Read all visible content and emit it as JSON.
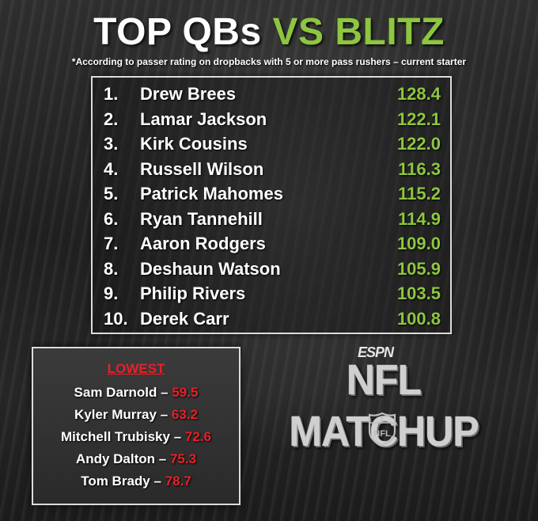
{
  "header": {
    "title_white": "TOP QBs",
    "title_green": "VS BLITZ",
    "footnote": "*According to passer rating on dropbacks with 5 or more pass rushers – current starter"
  },
  "top_list": [
    {
      "rank": "1.",
      "name": "Drew Brees",
      "rating": "128.4"
    },
    {
      "rank": "2.",
      "name": "Lamar Jackson",
      "rating": "122.1"
    },
    {
      "rank": "3.",
      "name": "Kirk Cousins",
      "rating": "122.0"
    },
    {
      "rank": "4.",
      "name": "Russell Wilson",
      "rating": "116.3"
    },
    {
      "rank": "5.",
      "name": "Patrick Mahomes",
      "rating": "115.2"
    },
    {
      "rank": "6.",
      "name": "Ryan Tannehill",
      "rating": "114.9"
    },
    {
      "rank": "7.",
      "name": "Aaron Rodgers",
      "rating": "109.0"
    },
    {
      "rank": "8.",
      "name": "Deshaun Watson",
      "rating": "105.9"
    },
    {
      "rank": "9.",
      "name": "Philip Rivers",
      "rating": "103.5"
    },
    {
      "rank": "10.",
      "name": "Derek Carr",
      "rating": "100.8"
    }
  ],
  "lowest": {
    "heading": "LOWEST",
    "separator": "–",
    "items": [
      {
        "name": "Sam Darnold",
        "rating": "59.5"
      },
      {
        "name": "Kyler Murray",
        "rating": "63.2"
      },
      {
        "name": "Mitchell Trubisky",
        "rating": "72.6"
      },
      {
        "name": "Andy Dalton",
        "rating": "75.3"
      },
      {
        "name": "Tom Brady",
        "rating": "78.7"
      }
    ]
  },
  "branding": {
    "network": "ESPN",
    "show": "NFL MATCHUP",
    "league_logo_text": "NFL",
    "icon": "nfl-shield-icon"
  },
  "colors": {
    "accent_green": "#8dc63f",
    "accent_red": "#e8202a",
    "text_white": "#ffffff"
  }
}
